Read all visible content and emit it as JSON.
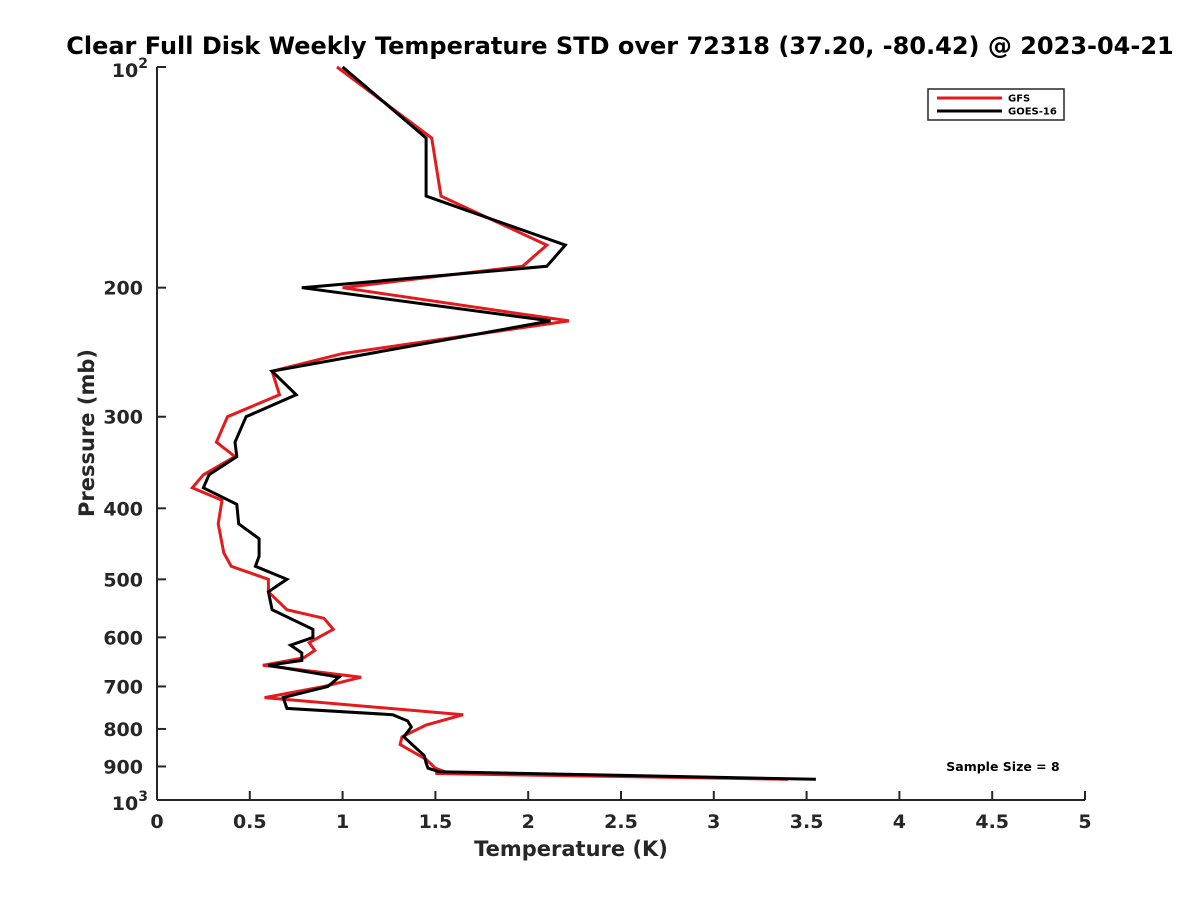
{
  "chart_data": {
    "type": "line",
    "title": "Clear Full Disk Weekly Temperature STD over 72318 (37.20, -80.42) @ 2023-04-21",
    "xlabel": "Temperature (K)",
    "ylabel": "Pressure (mb)",
    "xlim": [
      0,
      5
    ],
    "ylim": [
      100,
      1000
    ],
    "y_scale": "log",
    "y_reversed": true,
    "x_ticks": [
      "0",
      "0.5",
      "1",
      "1.5",
      "2",
      "2.5",
      "3",
      "3.5",
      "4",
      "4.5",
      "5"
    ],
    "y_ticks": [
      {
        "value": 100,
        "base": "10",
        "exp": "2"
      },
      {
        "value": 200,
        "label": "200"
      },
      {
        "value": 300,
        "label": "300"
      },
      {
        "value": 400,
        "label": "400"
      },
      {
        "value": 500,
        "label": "500"
      },
      {
        "value": 600,
        "label": "600"
      },
      {
        "value": 700,
        "label": "700"
      },
      {
        "value": 800,
        "label": "800"
      },
      {
        "value": 900,
        "label": "900"
      },
      {
        "value": 1000,
        "base": "10",
        "exp": "3"
      }
    ],
    "grid": false,
    "legend_position": "top-right",
    "annotation": "Sample Size = 8",
    "series": [
      {
        "name": "GFS",
        "color": "#e41a1c",
        "points": [
          [
            0.97,
            100
          ],
          [
            1.48,
            125
          ],
          [
            1.53,
            150
          ],
          [
            2.1,
            175
          ],
          [
            1.97,
            187
          ],
          [
            1.0,
            200
          ],
          [
            2.22,
            222
          ],
          [
            1.0,
            246
          ],
          [
            0.62,
            260
          ],
          [
            0.66,
            280
          ],
          [
            0.38,
            300
          ],
          [
            0.32,
            325
          ],
          [
            0.42,
            340
          ],
          [
            0.25,
            360
          ],
          [
            0.19,
            375
          ],
          [
            0.35,
            390
          ],
          [
            0.33,
            420
          ],
          [
            0.36,
            460
          ],
          [
            0.4,
            480
          ],
          [
            0.6,
            500
          ],
          [
            0.6,
            520
          ],
          [
            0.7,
            550
          ],
          [
            0.9,
            565
          ],
          [
            0.95,
            585
          ],
          [
            0.82,
            610
          ],
          [
            0.85,
            625
          ],
          [
            0.79,
            640
          ],
          [
            0.57,
            655
          ],
          [
            1.1,
            680
          ],
          [
            0.9,
            700
          ],
          [
            0.58,
            725
          ],
          [
            1.65,
            765
          ],
          [
            1.45,
            790
          ],
          [
            1.32,
            820
          ],
          [
            1.31,
            840
          ],
          [
            1.45,
            880
          ],
          [
            1.5,
            905
          ],
          [
            1.55,
            915
          ],
          [
            1.5,
            920
          ],
          [
            3.4,
            937
          ]
        ]
      },
      {
        "name": "GOES-16",
        "color": "#000000",
        "points": [
          [
            1.0,
            100
          ],
          [
            1.45,
            125
          ],
          [
            1.45,
            150
          ],
          [
            2.2,
            175
          ],
          [
            2.1,
            187
          ],
          [
            0.78,
            200
          ],
          [
            2.12,
            222
          ],
          [
            1.07,
            248
          ],
          [
            0.62,
            260
          ],
          [
            0.75,
            280
          ],
          [
            0.48,
            300
          ],
          [
            0.42,
            325
          ],
          [
            0.43,
            340
          ],
          [
            0.28,
            360
          ],
          [
            0.25,
            375
          ],
          [
            0.43,
            395
          ],
          [
            0.44,
            420
          ],
          [
            0.55,
            440
          ],
          [
            0.55,
            465
          ],
          [
            0.53,
            480
          ],
          [
            0.7,
            500
          ],
          [
            0.6,
            520
          ],
          [
            0.62,
            550
          ],
          [
            0.84,
            585
          ],
          [
            0.84,
            600
          ],
          [
            0.72,
            615
          ],
          [
            0.78,
            630
          ],
          [
            0.78,
            645
          ],
          [
            0.6,
            655
          ],
          [
            0.98,
            680
          ],
          [
            0.92,
            700
          ],
          [
            0.68,
            725
          ],
          [
            0.7,
            750
          ],
          [
            1.27,
            765
          ],
          [
            1.35,
            780
          ],
          [
            1.37,
            795
          ],
          [
            1.33,
            820
          ],
          [
            1.44,
            870
          ],
          [
            1.45,
            890
          ],
          [
            1.46,
            905
          ],
          [
            1.52,
            915
          ],
          [
            3.55,
            937
          ]
        ]
      }
    ]
  }
}
